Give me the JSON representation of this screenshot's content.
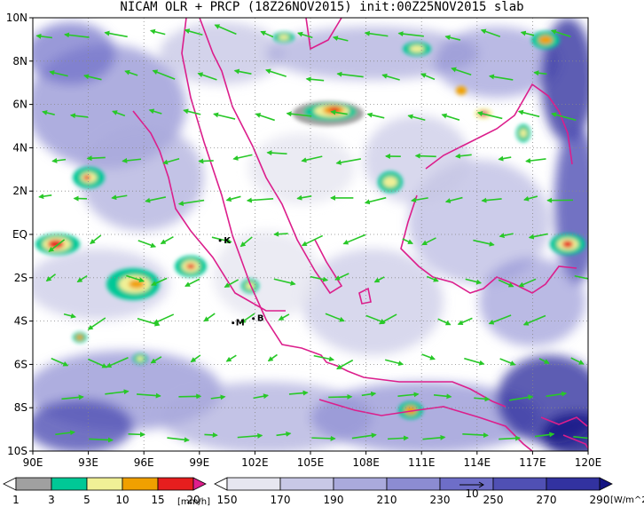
{
  "title": "NICAM OLR + PRCP (18Z26NOV2015) init:00Z25NOV2015 slab",
  "map": {
    "lon_labels": [
      "90E",
      "93E",
      "96E",
      "99E",
      "102E",
      "105E",
      "108E",
      "111E",
      "114E",
      "117E",
      "120E"
    ],
    "lat_labels": [
      "10N",
      "8N",
      "6N",
      "4N",
      "2N",
      "EQ",
      "2S",
      "4S",
      "6S",
      "8S",
      "10S"
    ],
    "stations": [
      {
        "label": "K",
        "lon": 100.5,
        "lat": -0.2
      },
      {
        "label": "M",
        "lon": 101.2,
        "lat": -4.0
      },
      {
        "label": "B",
        "lon": 102.3,
        "lat": -3.8
      }
    ]
  },
  "precip_bar": {
    "levels": [
      "1",
      "3",
      "5",
      "10",
      "15",
      "20"
    ],
    "unit": "[mm/h]",
    "colors": [
      "#ffffff",
      "#a0a0a0",
      "#00c896",
      "#f0f096",
      "#f0a000",
      "#e61e1e",
      "#e01e8c"
    ]
  },
  "olr_bar": {
    "levels": [
      "150",
      "170",
      "190",
      "210",
      "230",
      "250",
      "270",
      "290"
    ],
    "unit": "[W/m^2]",
    "colors": [
      "#ffffff",
      "#e6e6f0",
      "#c8c8e6",
      "#aaaadc",
      "#8c8cd2",
      "#6e6ec8",
      "#5050b4",
      "#3232a0",
      "#141482"
    ],
    "vector_key": "10"
  },
  "colors": {
    "coast": "#dc1e8c",
    "wind": "#28c828",
    "cloud": "#4848b4"
  }
}
